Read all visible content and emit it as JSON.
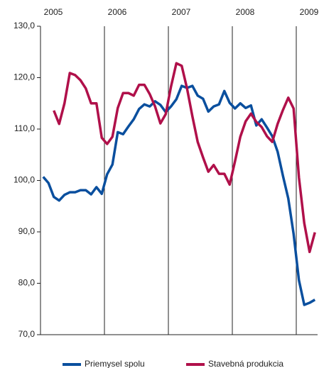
{
  "chart_data": {
    "type": "line",
    "categories": [
      null,
      null,
      null,
      null,
      null,
      null,
      null,
      null,
      null,
      null,
      null,
      null,
      null,
      null,
      null,
      null,
      null,
      null,
      null,
      null,
      null,
      null,
      null,
      null,
      null,
      null,
      null,
      null,
      null,
      null,
      null,
      null,
      null,
      null,
      null,
      null,
      null,
      null,
      null,
      null,
      null,
      null,
      null,
      null,
      null,
      null,
      null,
      null,
      null,
      null,
      null,
      null
    ],
    "year_labels": [
      "2005",
      "2006",
      "2007",
      "2008",
      "2009"
    ],
    "series": [
      {
        "name": "Priemysel spolu",
        "color": "#0a4f9e",
        "values": [
          100.7,
          99.5,
          96.8,
          96.1,
          97.2,
          97.7,
          97.7,
          98.1,
          98.1,
          97.3,
          98.7,
          97.4,
          101.2,
          103.1,
          109.4,
          109.0,
          110.5,
          111.9,
          113.9,
          114.8,
          114.4,
          115.4,
          114.7,
          113.3,
          114.4,
          115.8,
          118.4,
          118.0,
          118.4,
          116.5,
          115.9,
          113.4,
          114.4,
          114.8,
          117.4,
          115.1,
          114.0,
          115.0,
          114.1,
          114.6,
          110.7,
          111.9,
          110.3,
          108.6,
          105.6,
          100.9,
          96.5,
          89.6,
          80.6,
          75.8,
          76.2,
          76.8
        ]
      },
      {
        "name": "Stavebná produkcia",
        "color": "#b0104a",
        "values": [
          null,
          null,
          113.6,
          111.0,
          115.0,
          120.9,
          120.5,
          119.5,
          117.9,
          115.0,
          115.0,
          108.3,
          107.1,
          108.5,
          114.1,
          117.0,
          117.0,
          116.5,
          118.6,
          118.6,
          116.8,
          114.4,
          111.1,
          112.9,
          118.3,
          122.8,
          122.3,
          117.9,
          112.5,
          107.5,
          104.5,
          101.7,
          103.0,
          101.3,
          101.3,
          99.2,
          103.7,
          108.5,
          111.5,
          113.0,
          111.4,
          110.4,
          108.6,
          107.5,
          111.0,
          113.7,
          116.1,
          114.0,
          100.6,
          91.7,
          86.1,
          89.9
        ]
      }
    ],
    "ylim": [
      70,
      130
    ],
    "yticks": [
      {
        "value": 70,
        "label": "70,0"
      },
      {
        "value": 80,
        "label": "80,0"
      },
      {
        "value": 90,
        "label": "90,0"
      },
      {
        "value": 100,
        "label": "100,0"
      },
      {
        "value": 110,
        "label": "110,0"
      },
      {
        "value": 120,
        "label": "120,0"
      },
      {
        "value": 130,
        "label": "130,0"
      }
    ],
    "legend": "bottom"
  }
}
